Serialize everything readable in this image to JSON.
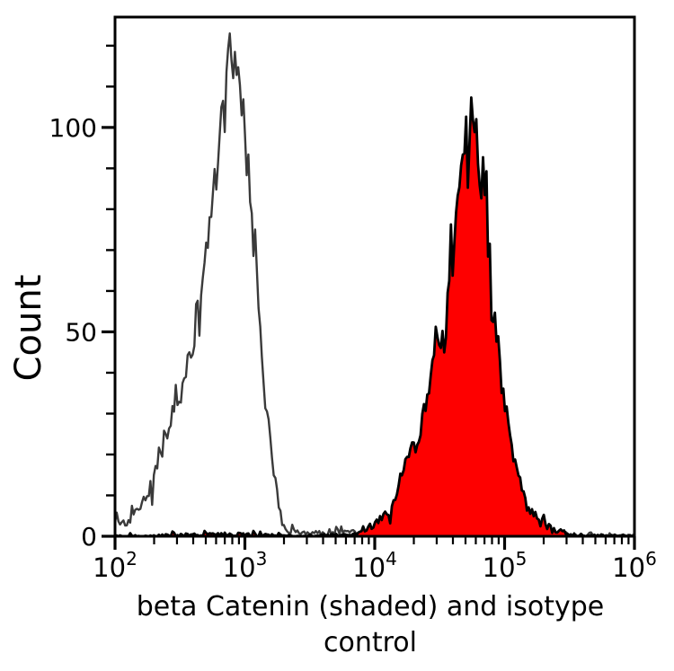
{
  "figure": {
    "ylabel": "Count",
    "xlabel": "beta Catenin (shaded) and isotype control",
    "xlabel_lines": [
      "beta Catenin (shaded) and isotype",
      "control"
    ]
  },
  "chart_data": {
    "type": "area",
    "subtype": "flow-cytometry-histogram-overlay",
    "title": "beta Catenin (shaded) and isotype control",
    "xlabel": "beta Catenin (shaded) and isotype control",
    "ylabel": "Count",
    "x_scale": "log10",
    "x_range_exp": [
      2,
      6
    ],
    "x_major_tick_exps": [
      2,
      3,
      4,
      5,
      6
    ],
    "x_major_tick_labels": [
      "10^2",
      "10^3",
      "10^4",
      "10^5",
      "10^6"
    ],
    "x_minor_tick_mantissas": [
      2,
      3,
      4,
      5,
      6,
      7,
      8,
      9
    ],
    "y_range": [
      0,
      127
    ],
    "y_major_ticks": [
      0,
      50,
      100
    ],
    "y_minor_tick_step": 10,
    "grid": false,
    "legend": "none",
    "frame_color": "#000000",
    "series": [
      {
        "name": "isotype control",
        "style": "open",
        "stroke_color": "#3a3a3a",
        "fill_color": "none",
        "stroke_width": 2.4,
        "jitter": 1.0,
        "seed": 13,
        "peak": {
          "x": 800,
          "count": 121
        },
        "points_log10x_count": [
          [
            2.0,
            3
          ],
          [
            2.05,
            4
          ],
          [
            2.1,
            3
          ],
          [
            2.15,
            5
          ],
          [
            2.2,
            7
          ],
          [
            2.25,
            10
          ],
          [
            2.3,
            15
          ],
          [
            2.35,
            20
          ],
          [
            2.4,
            26
          ],
          [
            2.45,
            30
          ],
          [
            2.5,
            34
          ],
          [
            2.55,
            41
          ],
          [
            2.6,
            48
          ],
          [
            2.65,
            58
          ],
          [
            2.7,
            67
          ],
          [
            2.75,
            80
          ],
          [
            2.8,
            96
          ],
          [
            2.84,
            106
          ],
          [
            2.88,
            121
          ],
          [
            2.9,
            117
          ],
          [
            2.92,
            113
          ],
          [
            2.96,
            109
          ],
          [
            2.98,
            104
          ],
          [
            3.02,
            95
          ],
          [
            3.05,
            82
          ],
          [
            3.07,
            70
          ],
          [
            3.1,
            56
          ],
          [
            3.12,
            48
          ],
          [
            3.16,
            32
          ],
          [
            3.2,
            22
          ],
          [
            3.24,
            12
          ],
          [
            3.28,
            4
          ],
          [
            3.32,
            1.5
          ],
          [
            3.4,
            0.9
          ],
          [
            3.6,
            0.8
          ],
          [
            3.8,
            0.9
          ],
          [
            4.0,
            1.0
          ],
          [
            4.3,
            1.2
          ],
          [
            4.6,
            1.0
          ],
          [
            5.0,
            1.2
          ],
          [
            5.3,
            0.8
          ],
          [
            5.45,
            0.4
          ],
          [
            5.55,
            0.2
          ],
          [
            6.0,
            0.15
          ]
        ]
      },
      {
        "name": "beta Catenin",
        "style": "shaded",
        "stroke_color": "#000000",
        "fill_color": "#fe0000",
        "stroke_width": 2.8,
        "jitter": 1.0,
        "seed": 101,
        "peak": {
          "x": 56000,
          "count": 104
        },
        "points_log10x_count": [
          [
            2.0,
            0.05
          ],
          [
            2.3,
            0.1
          ],
          [
            2.45,
            0.4
          ],
          [
            2.6,
            0.3
          ],
          [
            2.75,
            0.45
          ],
          [
            2.9,
            0.5
          ],
          [
            3.05,
            0.4
          ],
          [
            3.2,
            0.35
          ],
          [
            3.35,
            0.15
          ],
          [
            3.5,
            0.1
          ],
          [
            3.65,
            0.2
          ],
          [
            3.8,
            0.4
          ],
          [
            3.9,
            1
          ],
          [
            3.95,
            2
          ],
          [
            4.0,
            3
          ],
          [
            4.05,
            4.5
          ],
          [
            4.1,
            6
          ],
          [
            4.15,
            9
          ],
          [
            4.2,
            14
          ],
          [
            4.25,
            18
          ],
          [
            4.3,
            22
          ],
          [
            4.35,
            26
          ],
          [
            4.4,
            33
          ],
          [
            4.45,
            40
          ],
          [
            4.5,
            48
          ],
          [
            4.55,
            58
          ],
          [
            4.6,
            68
          ],
          [
            4.65,
            85
          ],
          [
            4.7,
            97
          ],
          [
            4.75,
            104
          ],
          [
            4.78,
            99
          ],
          [
            4.8,
            92
          ],
          [
            4.85,
            80
          ],
          [
            4.9,
            64
          ],
          [
            4.95,
            46
          ],
          [
            5.0,
            32
          ],
          [
            5.05,
            22
          ],
          [
            5.1,
            15
          ],
          [
            5.15,
            9
          ],
          [
            5.2,
            6
          ],
          [
            5.25,
            4.5
          ],
          [
            5.3,
            3
          ],
          [
            5.35,
            2
          ],
          [
            5.4,
            1.5
          ],
          [
            5.5,
            0.6
          ],
          [
            5.6,
            0.2
          ],
          [
            6.0,
            0.1
          ]
        ]
      }
    ]
  }
}
